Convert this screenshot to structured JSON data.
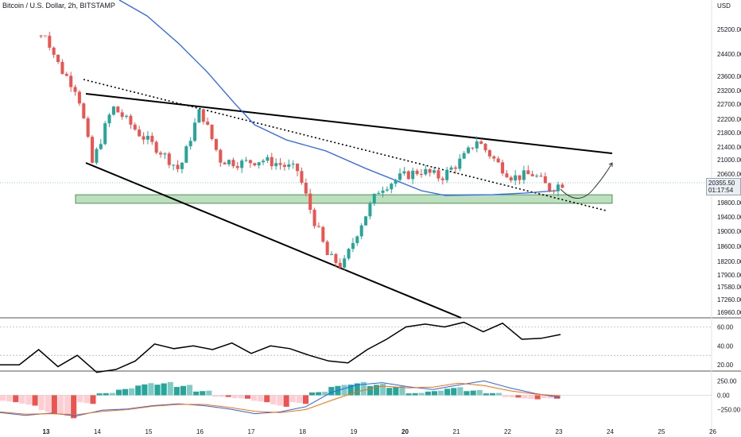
{
  "header": {
    "title": "Bitcoin / U.S. Dollar, 2h, BITSTAMP",
    "currency": "USD"
  },
  "price_tag": {
    "price": "20355.50",
    "countdown": "01:17:54"
  },
  "colors": {
    "up": "#26a69a",
    "down": "#ef5350",
    "ma": "#2962ff",
    "support_zone": "#a5d6a7"
  },
  "chart_data": [
    {
      "type": "candlestick",
      "title": "Bitcoin / U.S. Dollar, 2h, BITSTAMP",
      "x_ticks": [
        "13",
        "14",
        "15",
        "16",
        "17",
        "18",
        "19",
        "20",
        "21",
        "22",
        "23",
        "24",
        "25",
        "26"
      ],
      "y_ticks": [
        "25200.00",
        "24400.00",
        "23600.00",
        "23200.00",
        "22700.00",
        "22200.00",
        "21800.00",
        "21400.00",
        "21000.00",
        "20600.00",
        "19800.00",
        "19400.00",
        "19000.00",
        "18600.00",
        "18200.00",
        "17900.00",
        "17580.00",
        "17260.00",
        "16960.00"
      ],
      "ylabel": "USD",
      "approx_close_path": [
        {
          "day": 12.9,
          "price": 25400
        },
        {
          "day": 13.3,
          "price": 23800
        },
        {
          "day": 13.6,
          "price": 23200
        },
        {
          "day": 13.9,
          "price": 20900
        },
        {
          "day": 14.3,
          "price": 22600
        },
        {
          "day": 14.8,
          "price": 21800
        },
        {
          "day": 15.2,
          "price": 21300
        },
        {
          "day": 15.6,
          "price": 20700
        },
        {
          "day": 16.0,
          "price": 22500
        },
        {
          "day": 16.4,
          "price": 21000
        },
        {
          "day": 16.8,
          "price": 20900
        },
        {
          "day": 17.2,
          "price": 21000
        },
        {
          "day": 17.5,
          "price": 20900
        },
        {
          "day": 17.9,
          "price": 20700
        },
        {
          "day": 18.2,
          "price": 19400
        },
        {
          "day": 18.5,
          "price": 18300
        },
        {
          "day": 18.8,
          "price": 18100
        },
        {
          "day": 19.1,
          "price": 19100
        },
        {
          "day": 19.5,
          "price": 20200
        },
        {
          "day": 19.9,
          "price": 20500
        },
        {
          "day": 20.3,
          "price": 20700
        },
        {
          "day": 20.7,
          "price": 20500
        },
        {
          "day": 21.1,
          "price": 21000
        },
        {
          "day": 21.4,
          "price": 21600
        },
        {
          "day": 21.8,
          "price": 20900
        },
        {
          "day": 22.1,
          "price": 20500
        },
        {
          "day": 22.5,
          "price": 20600
        },
        {
          "day": 22.8,
          "price": 20200
        },
        {
          "day": 23.1,
          "price": 20355
        }
      ],
      "annotations": [
        "falling wedge trendlines",
        "dotted diagonal trendline",
        "support zone ~19800-20000",
        "projection arrow"
      ]
    },
    {
      "type": "line",
      "y_ticks": [
        "60.00",
        "40.00",
        "20.00"
      ],
      "ylim": [
        15,
        68
      ],
      "values": [
        20,
        20,
        36,
        18,
        30,
        12,
        15,
        24,
        42,
        37,
        40,
        36,
        43,
        32,
        40,
        37,
        30,
        24,
        22,
        36,
        47,
        60,
        63,
        60,
        65,
        55,
        64,
        47,
        48,
        52
      ]
    },
    {
      "type": "bar",
      "y_ticks": [
        "250.00",
        "0.00",
        "−250.00"
      ],
      "ylim": [
        -450,
        380
      ],
      "histogram": [
        -120,
        -180,
        -320,
        -400,
        -150,
        40,
        120,
        210,
        230,
        180,
        80,
        -30,
        -60,
        -120,
        -200,
        -150,
        60,
        180,
        230,
        200,
        160,
        40,
        80,
        140,
        90,
        40,
        -40,
        -70,
        -60
      ],
      "macd_line": [
        -300,
        -350,
        -310,
        -360,
        -260,
        -240,
        -180,
        -150,
        -180,
        -240,
        -320,
        -290,
        -200,
        50,
        180,
        220,
        150,
        100,
        180,
        250,
        130,
        30,
        -40
      ],
      "signal_line": [
        -290,
        -330,
        -320,
        -340,
        -280,
        -250,
        -190,
        -160,
        -160,
        -210,
        -280,
        -300,
        -250,
        -90,
        60,
        160,
        130,
        140,
        210,
        170,
        80,
        20,
        -10
      ]
    }
  ]
}
